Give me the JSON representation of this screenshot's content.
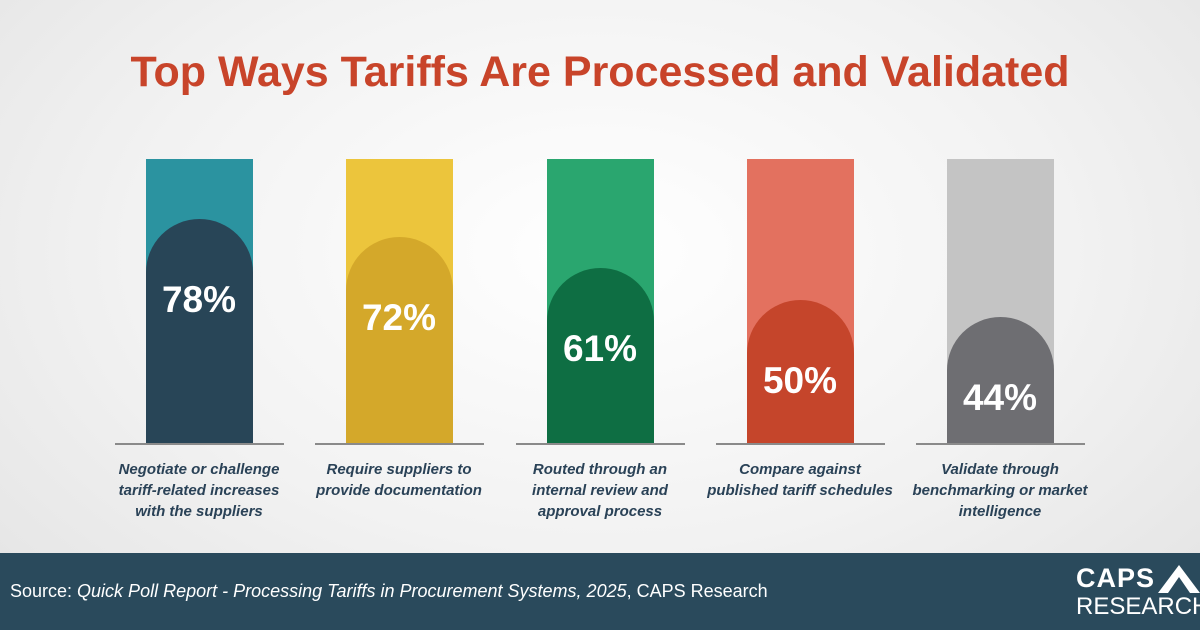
{
  "chart_data": {
    "type": "bar",
    "title": "Top Ways Tariffs Are Processed and Validated",
    "ylim": [
      0,
      100
    ],
    "categories": [
      "Negotiate or challenge tariff-related increases with the suppliers",
      "Require suppliers to provide documentation",
      "Routed through an internal review and approval process",
      "Compare against published tariff schedules",
      "Validate through benchmarking or market intelligence"
    ],
    "values": [
      78,
      72,
      61,
      50,
      44
    ],
    "labels": [
      "78%",
      "72%",
      "61%",
      "50%",
      "44%"
    ],
    "colors": {
      "bar_background": [
        "#2b93a0",
        "#ecc53c",
        "#2aa66f",
        "#e3715f",
        "#c4c4c4"
      ],
      "bar_fill": [
        "#284557",
        "#d4a82a",
        "#0e6e43",
        "#c5452b",
        "#6e6e72"
      ]
    }
  },
  "footer": {
    "source_prefix": "Source: ",
    "source_title": "Quick Poll Report - Processing Tariffs in Procurement Systems, 2025",
    "source_suffix": ", CAPS Research"
  },
  "logo": {
    "top": "CAPS",
    "bottom": "RESEARCH"
  }
}
